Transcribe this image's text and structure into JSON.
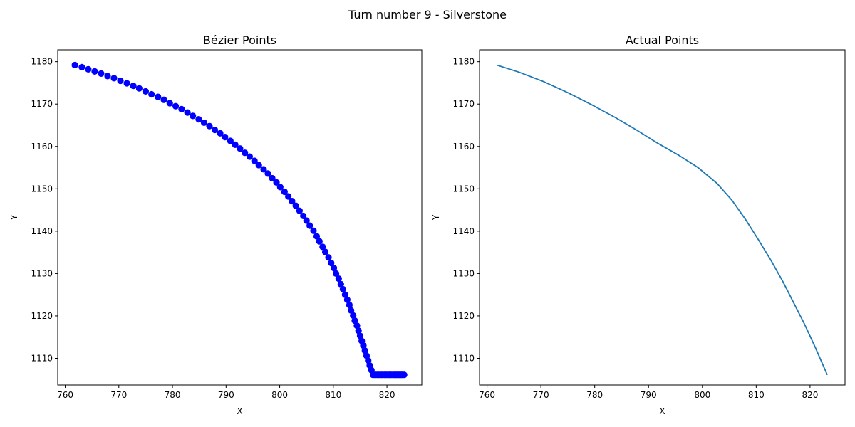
{
  "figure": {
    "suptitle": "Turn number 9 - Silverstone"
  },
  "chart_data": [
    {
      "type": "scatter",
      "title": "Bézier Points",
      "xlabel": "X",
      "ylabel": "Y",
      "xlim": [
        758.6,
        826.5
      ],
      "ylim": [
        1103.7,
        1182.8
      ],
      "xticks": [
        760,
        770,
        780,
        790,
        800,
        810,
        820
      ],
      "yticks": [
        1110,
        1120,
        1130,
        1140,
        1150,
        1160,
        1170,
        1180
      ],
      "marker_color": "#0000ff",
      "grid": false,
      "points_x": [
        761.8,
        763.1,
        764.3,
        765.5,
        766.7,
        767.9,
        769.1,
        770.3,
        771.5,
        772.7,
        773.8,
        775.0,
        776.1,
        777.3,
        778.4,
        779.5,
        780.6,
        781.7,
        782.8,
        783.8,
        784.9,
        785.9,
        786.9,
        787.9,
        788.9,
        789.8,
        790.8,
        791.7,
        792.6,
        793.5,
        794.4,
        795.3,
        796.1,
        797.0,
        797.8,
        798.6,
        799.4,
        800.1,
        800.9,
        801.6,
        802.3,
        803.0,
        803.7,
        804.4,
        805.0,
        805.6,
        806.3,
        806.9,
        807.4,
        808.0,
        808.5,
        809.1,
        809.6,
        810.1,
        810.5,
        811.0,
        811.4,
        811.8,
        812.2,
        812.6,
        813.0,
        813.3,
        813.7,
        814.0,
        814.4,
        814.7,
        815.0,
        815.3,
        815.6,
        815.9,
        816.2,
        816.5,
        816.8,
        817.1,
        817.4,
        817.7,
        817.9,
        818.2,
        818.5,
        818.7,
        819.0,
        819.2,
        819.5,
        819.7,
        819.9,
        820.2,
        820.4,
        820.6,
        820.8,
        821.1,
        821.3,
        821.5,
        821.7,
        821.9,
        822.1,
        822.3,
        822.5,
        822.7,
        822.9,
        823.2
      ],
      "points_y": [
        1179.2,
        1178.7,
        1178.2,
        1177.7,
        1177.2,
        1176.6,
        1176.1,
        1175.5,
        1174.9,
        1174.3,
        1173.7,
        1173.0,
        1172.3,
        1171.7,
        1171.0,
        1170.2,
        1169.5,
        1168.8,
        1168.0,
        1167.2,
        1166.4,
        1165.6,
        1164.8,
        1163.9,
        1163.1,
        1162.2,
        1161.3,
        1160.4,
        1159.5,
        1158.5,
        1157.6,
        1156.6,
        1155.6,
        1154.6,
        1153.6,
        1152.5,
        1151.5,
        1150.4,
        1149.3,
        1148.2,
        1147.1,
        1146.0,
        1144.8,
        1143.6,
        1142.5,
        1141.3,
        1140.1,
        1138.8,
        1137.6,
        1136.3,
        1135.1,
        1133.8,
        1132.5,
        1131.3,
        1130.0,
        1128.8,
        1127.5,
        1126.3,
        1125.0,
        1123.8,
        1122.6,
        1121.3,
        1120.1,
        1118.9,
        1117.7,
        1116.5,
        1115.3,
        1114.1,
        1113.0,
        1111.8,
        1110.6,
        1109.5,
        1108.3,
        1107.2,
        1106.1,
        1106.1,
        1106.1,
        1106.1,
        1106.1,
        1106.1,
        1106.1,
        1106.1,
        1106.1,
        1106.1,
        1106.1,
        1106.1,
        1106.1,
        1106.1,
        1106.1,
        1106.1,
        1106.1,
        1106.1,
        1106.1,
        1106.1,
        1106.1,
        1106.1,
        1106.1,
        1106.1,
        1106.1,
        1106.1
      ]
    },
    {
      "type": "line",
      "title": "Actual Points",
      "xlabel": "X",
      "ylabel": "Y",
      "xlim": [
        758.6,
        826.5
      ],
      "ylim": [
        1103.7,
        1182.8
      ],
      "xticks": [
        760,
        770,
        780,
        790,
        800,
        810,
        820
      ],
      "yticks": [
        1110,
        1120,
        1130,
        1140,
        1150,
        1160,
        1170,
        1180
      ],
      "line_color": "#1f77b4",
      "grid": false,
      "x": [
        761.8,
        766.0,
        770.5,
        775.0,
        779.5,
        784.0,
        788.0,
        791.5,
        795.5,
        799.2,
        802.7,
        805.5,
        808.0,
        810.5,
        812.8,
        815.0,
        817.0,
        819.0,
        821.0,
        823.2
      ],
      "y": [
        1179.2,
        1177.5,
        1175.3,
        1172.7,
        1169.8,
        1166.7,
        1163.7,
        1160.9,
        1158.0,
        1155.0,
        1151.3,
        1147.3,
        1142.8,
        1137.8,
        1133.0,
        1128.0,
        1123.0,
        1118.0,
        1112.5,
        1106.1
      ]
    }
  ]
}
